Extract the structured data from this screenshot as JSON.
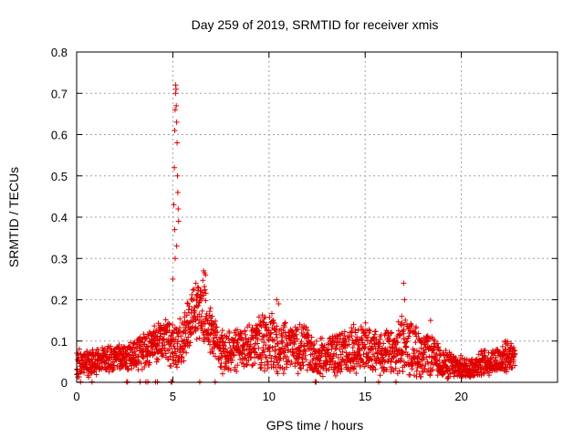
{
  "chart_data": {
    "type": "scatter",
    "title": "Day 259 of 2019, SRMTID for receiver xmis",
    "xlabel": "GPS time / hours",
    "ylabel": "SRMTID / TECUs",
    "xlim": [
      0,
      25
    ],
    "ylim": [
      0,
      0.8
    ],
    "grid": true,
    "marker": "+",
    "color": "#e00000",
    "xticks": [
      0,
      5,
      10,
      15,
      20
    ],
    "xtick_labels": [
      "0",
      "5",
      "10",
      "15",
      "20"
    ],
    "yticks": [
      0,
      0.1,
      0.2,
      0.3,
      0.4,
      0.5,
      0.6,
      0.7,
      0.8
    ],
    "ytick_labels": [
      "0",
      "0.1",
      "0.2",
      "0.3",
      "0.4",
      "0.5",
      "0.6",
      "0.7",
      "0.8"
    ],
    "series": [
      {
        "name": "SRMTID",
        "profile": {
          "x": [
            0.0,
            0.5,
            1.0,
            1.5,
            2.0,
            2.5,
            3.0,
            3.5,
            4.0,
            4.5,
            5.0,
            5.5,
            6.0,
            6.5,
            7.0,
            7.5,
            8.0,
            8.5,
            9.0,
            9.5,
            10.0,
            10.5,
            11.0,
            11.5,
            12.0,
            12.5,
            13.0,
            13.5,
            14.0,
            14.5,
            15.0,
            15.5,
            16.0,
            16.5,
            17.0,
            17.5,
            18.0,
            18.5,
            19.0,
            19.5,
            20.0,
            20.5,
            21.0,
            21.5,
            22.0,
            22.5
          ],
          "y_mean": [
            0.045,
            0.045,
            0.05,
            0.055,
            0.06,
            0.06,
            0.065,
            0.08,
            0.085,
            0.11,
            0.09,
            0.09,
            0.17,
            0.18,
            0.12,
            0.075,
            0.07,
            0.08,
            0.09,
            0.1,
            0.1,
            0.075,
            0.09,
            0.08,
            0.085,
            0.055,
            0.065,
            0.07,
            0.075,
            0.08,
            0.085,
            0.075,
            0.07,
            0.07,
            0.095,
            0.08,
            0.065,
            0.065,
            0.045,
            0.04,
            0.035,
            0.035,
            0.045,
            0.05,
            0.055,
            0.065
          ],
          "y_spread": [
            0.04,
            0.035,
            0.035,
            0.035,
            0.035,
            0.035,
            0.04,
            0.05,
            0.05,
            0.06,
            0.06,
            0.07,
            0.07,
            0.08,
            0.07,
            0.06,
            0.06,
            0.06,
            0.06,
            0.07,
            0.08,
            0.07,
            0.06,
            0.06,
            0.06,
            0.05,
            0.05,
            0.06,
            0.06,
            0.06,
            0.06,
            0.06,
            0.06,
            0.06,
            0.08,
            0.07,
            0.06,
            0.05,
            0.04,
            0.035,
            0.03,
            0.03,
            0.035,
            0.035,
            0.04,
            0.04
          ],
          "samples_per_hour": 100
        },
        "peaks": [
          {
            "x": 5.05,
            "y": 0.43
          },
          {
            "x": 5.08,
            "y": 0.52
          },
          {
            "x": 5.1,
            "y": 0.61
          },
          {
            "x": 5.12,
            "y": 0.66
          },
          {
            "x": 5.14,
            "y": 0.7
          },
          {
            "x": 5.15,
            "y": 0.72
          },
          {
            "x": 5.17,
            "y": 0.71
          },
          {
            "x": 5.18,
            "y": 0.67
          },
          {
            "x": 5.2,
            "y": 0.63
          },
          {
            "x": 5.22,
            "y": 0.58
          },
          {
            "x": 5.24,
            "y": 0.5
          },
          {
            "x": 5.26,
            "y": 0.46
          },
          {
            "x": 5.28,
            "y": 0.42
          },
          {
            "x": 5.3,
            "y": 0.39
          },
          {
            "x": 5.12,
            "y": 0.3
          },
          {
            "x": 5.1,
            "y": 0.37
          },
          {
            "x": 5.0,
            "y": 0.25
          },
          {
            "x": 5.2,
            "y": 0.33
          },
          {
            "x": 6.6,
            "y": 0.27
          },
          {
            "x": 6.65,
            "y": 0.265
          },
          {
            "x": 6.7,
            "y": 0.26
          },
          {
            "x": 6.2,
            "y": 0.24
          },
          {
            "x": 6.3,
            "y": 0.23
          },
          {
            "x": 17.0,
            "y": 0.24
          },
          {
            "x": 17.05,
            "y": 0.2
          },
          {
            "x": 16.9,
            "y": 0.16
          },
          {
            "x": 10.4,
            "y": 0.2
          },
          {
            "x": 10.5,
            "y": 0.19
          },
          {
            "x": 11.6,
            "y": 0.14
          },
          {
            "x": 14.4,
            "y": 0.14
          },
          {
            "x": 18.4,
            "y": 0.15
          },
          {
            "x": 22.3,
            "y": 0.1
          }
        ],
        "baseline_x": [
          0.2,
          0.8,
          2.6,
          2.65,
          3.3,
          3.6,
          3.7,
          4.1,
          4.2,
          4.9,
          4.95,
          6.4,
          7.2,
          12.4,
          12.45,
          15.7,
          16.6
        ]
      }
    ]
  }
}
